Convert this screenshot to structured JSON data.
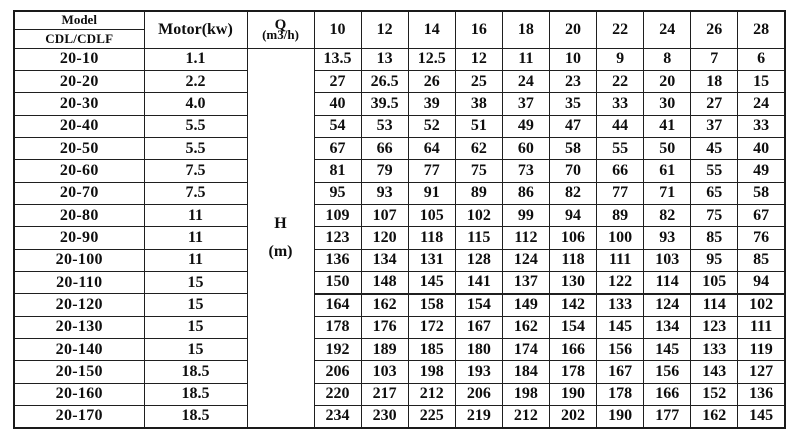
{
  "table": {
    "header": {
      "model_label": "Model",
      "model_sub_label": "CDL/CDLF",
      "motor_label": "Motor(kw)",
      "q_label": "Q",
      "q_unit": "(m3/h)",
      "flow_columns": [
        "10",
        "12",
        "14",
        "16",
        "18",
        "20",
        "22",
        "24",
        "26",
        "28"
      ]
    },
    "h_label": "H",
    "h_unit": "(m)",
    "rows": [
      {
        "model": "20-10",
        "motor": "1.1",
        "values": [
          "13.5",
          "13",
          "12.5",
          "12",
          "11",
          "10",
          "9",
          "8",
          "7",
          "6"
        ]
      },
      {
        "model": "20-20",
        "motor": "2.2",
        "values": [
          "27",
          "26.5",
          "26",
          "25",
          "24",
          "23",
          "22",
          "20",
          "18",
          "15"
        ]
      },
      {
        "model": "20-30",
        "motor": "4.0",
        "values": [
          "40",
          "39.5",
          "39",
          "38",
          "37",
          "35",
          "33",
          "30",
          "27",
          "24"
        ]
      },
      {
        "model": "20-40",
        "motor": "5.5",
        "values": [
          "54",
          "53",
          "52",
          "51",
          "49",
          "47",
          "44",
          "41",
          "37",
          "33"
        ]
      },
      {
        "model": "20-50",
        "motor": "5.5",
        "values": [
          "67",
          "66",
          "64",
          "62",
          "60",
          "58",
          "55",
          "50",
          "45",
          "40"
        ]
      },
      {
        "model": "20-60",
        "motor": "7.5",
        "values": [
          "81",
          "79",
          "77",
          "75",
          "73",
          "70",
          "66",
          "61",
          "55",
          "49"
        ]
      },
      {
        "model": "20-70",
        "motor": "7.5",
        "values": [
          "95",
          "93",
          "91",
          "89",
          "86",
          "82",
          "77",
          "71",
          "65",
          "58"
        ]
      },
      {
        "model": "20-80",
        "motor": "11",
        "values": [
          "109",
          "107",
          "105",
          "102",
          "99",
          "94",
          "89",
          "82",
          "75",
          "67"
        ]
      },
      {
        "model": "20-90",
        "motor": "11",
        "values": [
          "123",
          "120",
          "118",
          "115",
          "112",
          "106",
          "100",
          "93",
          "85",
          "76"
        ]
      },
      {
        "model": "20-100",
        "motor": "11",
        "values": [
          "136",
          "134",
          "131",
          "128",
          "124",
          "118",
          "111",
          "103",
          "95",
          "85"
        ]
      },
      {
        "model": "20-110",
        "motor": "15",
        "values": [
          "150",
          "148",
          "145",
          "141",
          "137",
          "130",
          "122",
          "114",
          "105",
          "94"
        ]
      },
      {
        "model": "20-120",
        "motor": "15",
        "values": [
          "164",
          "162",
          "158",
          "154",
          "149",
          "142",
          "133",
          "124",
          "114",
          "102"
        ]
      },
      {
        "model": "20-130",
        "motor": "15",
        "values": [
          "178",
          "176",
          "172",
          "167",
          "162",
          "154",
          "145",
          "134",
          "123",
          "111"
        ]
      },
      {
        "model": "20-140",
        "motor": "15",
        "values": [
          "192",
          "189",
          "185",
          "180",
          "174",
          "166",
          "156",
          "145",
          "133",
          "119"
        ]
      },
      {
        "model": "20-150",
        "motor": "18.5",
        "values": [
          "206",
          "103",
          "198",
          "193",
          "184",
          "178",
          "167",
          "156",
          "143",
          "127"
        ]
      },
      {
        "model": "20-160",
        "motor": "18.5",
        "values": [
          "220",
          "217",
          "212",
          "206",
          "198",
          "190",
          "178",
          "166",
          "152",
          "136"
        ]
      },
      {
        "model": "20-170",
        "motor": "18.5",
        "values": [
          "234",
          "230",
          "225",
          "219",
          "212",
          "202",
          "190",
          "177",
          "162",
          "145"
        ]
      }
    ]
  }
}
